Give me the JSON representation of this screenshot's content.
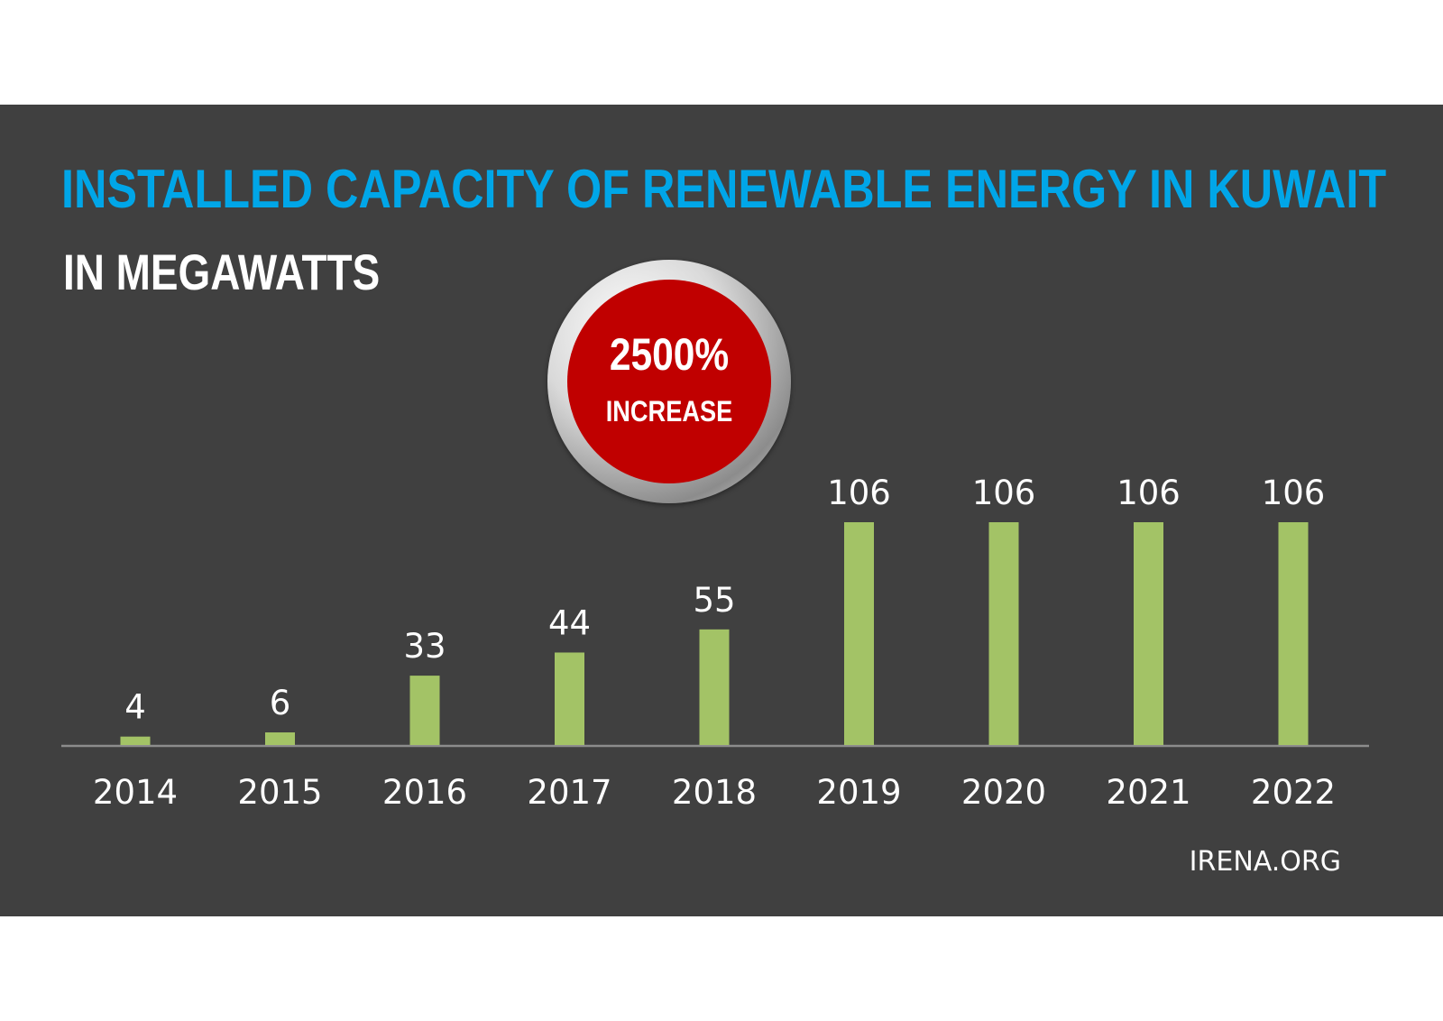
{
  "header": {
    "title": "INSTALLED CAPACITY OF RENEWABLE ENERGY IN KUWAIT",
    "subtitle": "IN MEGAWATTS"
  },
  "badge": {
    "value": "2500%",
    "label": "INCREASE"
  },
  "footer": {
    "source": "IRENA.ORG"
  },
  "colors": {
    "panel": "#404040",
    "title": "#00a6e8",
    "bar": "#a3c366",
    "badge": "#c00000",
    "axis": "#8c8c8c",
    "text": "#ffffff"
  },
  "chart_data": {
    "type": "bar",
    "title": "INSTALLED CAPACITY OF RENEWABLE ENERGY IN KUWAIT",
    "subtitle": "IN MEGAWATTS",
    "xlabel": "",
    "ylabel": "",
    "categories": [
      "2014",
      "2015",
      "2016",
      "2017",
      "2018",
      "2019",
      "2020",
      "2021",
      "2022"
    ],
    "values": [
      4,
      6,
      33,
      44,
      55,
      106,
      106,
      106,
      106
    ],
    "data_labels": [
      "4",
      "6",
      "33",
      "44",
      "55",
      "106",
      "106",
      "106",
      "106"
    ],
    "ylim": [
      0,
      106
    ],
    "grid": false,
    "legend": "none"
  }
}
